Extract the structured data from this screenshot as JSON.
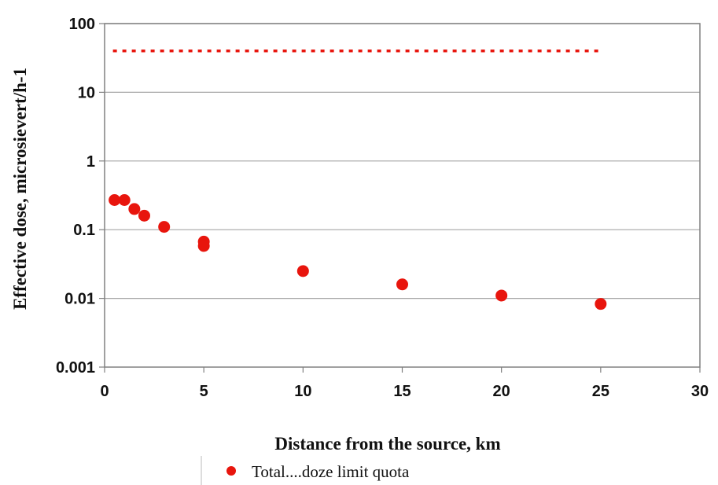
{
  "chart_data": {
    "type": "scatter",
    "xlabel": "Distance from the source, km",
    "ylabel": "Effective dose, microsievert/h-1",
    "xlim": [
      0,
      30
    ],
    "ylim": [
      0.001,
      100
    ],
    "yscale": "log",
    "grid": "horizontal",
    "x_ticks": [
      "0",
      "5",
      "10",
      "15",
      "20",
      "25",
      "30"
    ],
    "y_ticks": [
      "0.001",
      "0.01",
      "0.1",
      "1",
      "10",
      "100"
    ],
    "series": [
      {
        "name": "Total",
        "marker": "circle",
        "color": "#e8150d",
        "x": [
          0.5,
          1,
          1.5,
          2,
          3,
          5,
          5,
          10,
          15,
          20,
          25
        ],
        "y": [
          0.27,
          0.27,
          0.2,
          0.16,
          0.11,
          0.067,
          0.058,
          0.025,
          0.016,
          0.011,
          0.0083
        ]
      },
      {
        "name": "doze limit quota",
        "style": "dotted-line",
        "color": "#e8150d",
        "x": [
          0.5,
          25
        ],
        "y": [
          40,
          40
        ]
      }
    ],
    "legend": {
      "position": "bottom",
      "text": "Total....doze limit quota"
    }
  }
}
